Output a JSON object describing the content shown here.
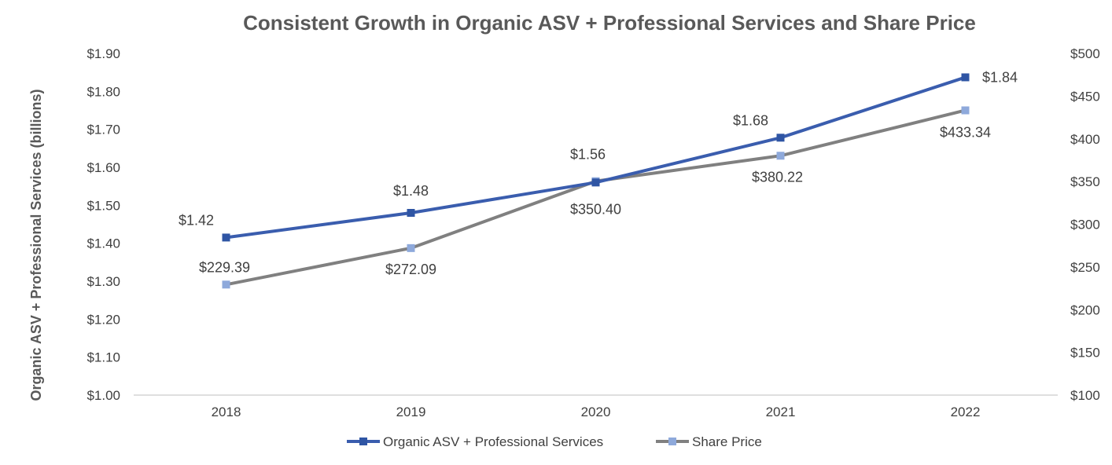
{
  "chart_data": {
    "type": "line",
    "title": "Consistent Growth in Organic ASV + Professional Services and Share Price",
    "xlabel": "",
    "ylabel": "Organic ASV + Professional Services (billions)",
    "y2label": "",
    "categories": [
      "2018",
      "2019",
      "2020",
      "2021",
      "2022"
    ],
    "ylim": [
      1.0,
      1.9
    ],
    "y2lim": [
      100,
      500
    ],
    "yticks": [
      "$1.00",
      "$1.10",
      "$1.20",
      "$1.30",
      "$1.40",
      "$1.50",
      "$1.60",
      "$1.70",
      "$1.80",
      "$1.90"
    ],
    "y2ticks": [
      "$100",
      "$150",
      "$200",
      "$250",
      "$300",
      "$350",
      "$400",
      "$450",
      "$500"
    ],
    "legend_position": "bottom",
    "series": [
      {
        "name": "Organic ASV + Professional Services",
        "axis": "left",
        "color": "#3A5DAE",
        "marker_color": "#2F55A4",
        "values": [
          1.415,
          1.48,
          1.56,
          1.678,
          1.837
        ],
        "labels": [
          "$1.42",
          "$1.48",
          "$1.56",
          "$1.68",
          "$1.84"
        ]
      },
      {
        "name": "Share Price",
        "axis": "right",
        "color": "#808080",
        "marker_color": "#8EA9DB",
        "values": [
          229.39,
          272.09,
          350.4,
          380.22,
          433.34
        ],
        "labels": [
          "$229.39",
          "$272.09",
          "$350.40",
          "$380.22",
          "$433.34"
        ]
      }
    ]
  }
}
